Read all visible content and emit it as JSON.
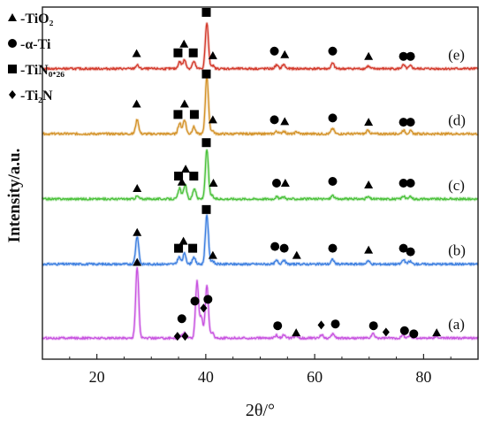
{
  "chart_data": {
    "type": "line",
    "xlabel": "2θ/°",
    "ylabel": "Intensity/a.u.",
    "xlim": [
      10,
      90
    ],
    "xticks": [
      20,
      40,
      60,
      80
    ],
    "yticks": "none",
    "grid": false,
    "legend": {
      "position": "top-left",
      "entries": [
        {
          "marker": "triangle",
          "label": "-TiO₂"
        },
        {
          "marker": "circle",
          "label": "-α-Ti"
        },
        {
          "marker": "square",
          "label": "-TiN₀.₂₆"
        },
        {
          "marker": "diamond",
          "label": "-Ti₂N"
        }
      ]
    },
    "series": [
      {
        "name": "(a)",
        "color": "#c855e0",
        "baseline": 0.06,
        "peaks": [
          [
            27.4,
            0.2
          ],
          [
            35.5,
            0.005
          ],
          [
            36.1,
            0.015
          ],
          [
            38.4,
            0.16
          ],
          [
            39.2,
            0.06
          ],
          [
            40.2,
            0.15
          ],
          [
            41.2,
            0.015
          ],
          [
            53.0,
            0.008
          ],
          [
            54.3,
            0.008
          ],
          [
            56.6,
            0.006
          ],
          [
            61.3,
            0.01
          ],
          [
            63.4,
            0.012
          ],
          [
            70.7,
            0.012
          ],
          [
            76.2,
            0.008
          ],
          [
            77.5,
            0.007
          ],
          [
            82.3,
            0.005
          ]
        ],
        "markers": [
          {
            "x": 27.4,
            "y": 0.275,
            "type": "triangle"
          },
          {
            "x": 34.8,
            "y": 0.065,
            "type": "diamond"
          },
          {
            "x": 35.6,
            "y": 0.115,
            "type": "circle"
          },
          {
            "x": 36.2,
            "y": 0.065,
            "type": "diamond"
          },
          {
            "x": 38.0,
            "y": 0.165,
            "type": "circle"
          },
          {
            "x": 39.6,
            "y": 0.145,
            "type": "diamond"
          },
          {
            "x": 40.4,
            "y": 0.17,
            "type": "circle"
          },
          {
            "x": 53.2,
            "y": 0.095,
            "type": "circle"
          },
          {
            "x": 56.6,
            "y": 0.075,
            "type": "triangle"
          },
          {
            "x": 61.2,
            "y": 0.097,
            "type": "diamond"
          },
          {
            "x": 63.8,
            "y": 0.1,
            "type": "circle"
          },
          {
            "x": 70.8,
            "y": 0.095,
            "type": "circle"
          },
          {
            "x": 73.1,
            "y": 0.077,
            "type": "diamond"
          },
          {
            "x": 76.5,
            "y": 0.081,
            "type": "circle"
          },
          {
            "x": 78.2,
            "y": 0.072,
            "type": "circle"
          },
          {
            "x": 82.4,
            "y": 0.075,
            "type": "triangle"
          }
        ]
      },
      {
        "name": "(b)",
        "color": "#3d7fe0",
        "baseline": 0.27,
        "peaks": [
          [
            27.4,
            0.08
          ],
          [
            35.1,
            0.02
          ],
          [
            36.1,
            0.03
          ],
          [
            37.8,
            0.02
          ],
          [
            40.2,
            0.14
          ],
          [
            41.2,
            0.01
          ],
          [
            53.0,
            0.01
          ],
          [
            54.3,
            0.012
          ],
          [
            63.3,
            0.013
          ],
          [
            69.8,
            0.01
          ],
          [
            76.3,
            0.012
          ],
          [
            77.5,
            0.008
          ]
        ],
        "markers": [
          {
            "x": 27.4,
            "y": 0.36,
            "type": "triangle"
          },
          {
            "x": 35.0,
            "y": 0.315,
            "type": "square"
          },
          {
            "x": 35.9,
            "y": 0.335,
            "type": "triangle"
          },
          {
            "x": 37.6,
            "y": 0.315,
            "type": "square"
          },
          {
            "x": 40.1,
            "y": 0.425,
            "type": "square"
          },
          {
            "x": 41.3,
            "y": 0.295,
            "type": "triangle"
          },
          {
            "x": 52.7,
            "y": 0.32,
            "type": "circle"
          },
          {
            "x": 54.4,
            "y": 0.315,
            "type": "circle"
          },
          {
            "x": 56.7,
            "y": 0.295,
            "type": "triangle"
          },
          {
            "x": 63.3,
            "y": 0.315,
            "type": "circle"
          },
          {
            "x": 69.9,
            "y": 0.31,
            "type": "triangle"
          },
          {
            "x": 76.3,
            "y": 0.315,
            "type": "circle"
          },
          {
            "x": 77.6,
            "y": 0.305,
            "type": "circle"
          }
        ]
      },
      {
        "name": "(c)",
        "color": "#4cc23c",
        "baseline": 0.455,
        "peaks": [
          [
            27.4,
            0.008
          ],
          [
            35.2,
            0.03
          ],
          [
            36.2,
            0.04
          ],
          [
            37.9,
            0.03
          ],
          [
            40.2,
            0.14
          ],
          [
            41.1,
            0.01
          ],
          [
            53.0,
            0.006
          ],
          [
            54.3,
            0.006
          ],
          [
            63.3,
            0.01
          ],
          [
            69.8,
            0.006
          ],
          [
            76.3,
            0.008
          ],
          [
            77.6,
            0.006
          ]
        ],
        "markers": [
          {
            "x": 27.4,
            "y": 0.485,
            "type": "triangle"
          },
          {
            "x": 35.0,
            "y": 0.52,
            "type": "square"
          },
          {
            "x": 35.6,
            "y": 0.503,
            "type": "triangle"
          },
          {
            "x": 36.3,
            "y": 0.54,
            "type": "triangle"
          },
          {
            "x": 37.8,
            "y": 0.52,
            "type": "square"
          },
          {
            "x": 40.1,
            "y": 0.615,
            "type": "square"
          },
          {
            "x": 41.4,
            "y": 0.5,
            "type": "triangle"
          },
          {
            "x": 53.0,
            "y": 0.5,
            "type": "circle"
          },
          {
            "x": 54.6,
            "y": 0.5,
            "type": "triangle"
          },
          {
            "x": 63.3,
            "y": 0.505,
            "type": "circle"
          },
          {
            "x": 69.9,
            "y": 0.495,
            "type": "triangle"
          },
          {
            "x": 76.3,
            "y": 0.5,
            "type": "circle"
          },
          {
            "x": 77.6,
            "y": 0.5,
            "type": "circle"
          }
        ]
      },
      {
        "name": "(d)",
        "color": "#d4932a",
        "baseline": 0.64,
        "peaks": [
          [
            27.4,
            0.04
          ],
          [
            35.2,
            0.03
          ],
          [
            36.1,
            0.04
          ],
          [
            37.8,
            0.02
          ],
          [
            40.2,
            0.165
          ],
          [
            41.2,
            0.01
          ],
          [
            53.0,
            0.007
          ],
          [
            54.3,
            0.008
          ],
          [
            56.7,
            0.006
          ],
          [
            63.3,
            0.015
          ],
          [
            69.8,
            0.01
          ],
          [
            76.3,
            0.01
          ],
          [
            77.6,
            0.008
          ]
        ],
        "markers": [
          {
            "x": 27.3,
            "y": 0.725,
            "type": "triangle"
          },
          {
            "x": 34.9,
            "y": 0.695,
            "type": "square"
          },
          {
            "x": 36.1,
            "y": 0.725,
            "type": "triangle"
          },
          {
            "x": 37.9,
            "y": 0.695,
            "type": "square"
          },
          {
            "x": 40.1,
            "y": 0.81,
            "type": "square"
          },
          {
            "x": 41.3,
            "y": 0.68,
            "type": "triangle"
          },
          {
            "x": 52.6,
            "y": 0.68,
            "type": "circle"
          },
          {
            "x": 54.5,
            "y": 0.675,
            "type": "triangle"
          },
          {
            "x": 63.3,
            "y": 0.685,
            "type": "circle"
          },
          {
            "x": 69.9,
            "y": 0.673,
            "type": "triangle"
          },
          {
            "x": 76.3,
            "y": 0.673,
            "type": "circle"
          },
          {
            "x": 77.6,
            "y": 0.673,
            "type": "circle"
          }
        ]
      },
      {
        "name": "(e)",
        "color": "#d33a2c",
        "baseline": 0.825,
        "peaks": [
          [
            27.4,
            0.01
          ],
          [
            35.2,
            0.02
          ],
          [
            36.1,
            0.025
          ],
          [
            37.8,
            0.02
          ],
          [
            40.2,
            0.13
          ],
          [
            41.2,
            0.01
          ],
          [
            53.0,
            0.01
          ],
          [
            54.3,
            0.012
          ],
          [
            63.3,
            0.015
          ],
          [
            69.8,
            0.007
          ],
          [
            76.3,
            0.01
          ],
          [
            77.6,
            0.008
          ]
        ],
        "markers": [
          {
            "x": 27.3,
            "y": 0.868,
            "type": "triangle"
          },
          {
            "x": 34.9,
            "y": 0.87,
            "type": "square"
          },
          {
            "x": 36.0,
            "y": 0.895,
            "type": "triangle"
          },
          {
            "x": 37.7,
            "y": 0.87,
            "type": "square"
          },
          {
            "x": 40.1,
            "y": 0.985,
            "type": "square"
          },
          {
            "x": 41.3,
            "y": 0.862,
            "type": "triangle"
          },
          {
            "x": 52.6,
            "y": 0.875,
            "type": "circle"
          },
          {
            "x": 54.5,
            "y": 0.865,
            "type": "triangle"
          },
          {
            "x": 63.3,
            "y": 0.875,
            "type": "circle"
          },
          {
            "x": 69.9,
            "y": 0.86,
            "type": "triangle"
          },
          {
            "x": 76.3,
            "y": 0.86,
            "type": "circle"
          },
          {
            "x": 77.6,
            "y": 0.86,
            "type": "circle"
          }
        ]
      }
    ]
  }
}
